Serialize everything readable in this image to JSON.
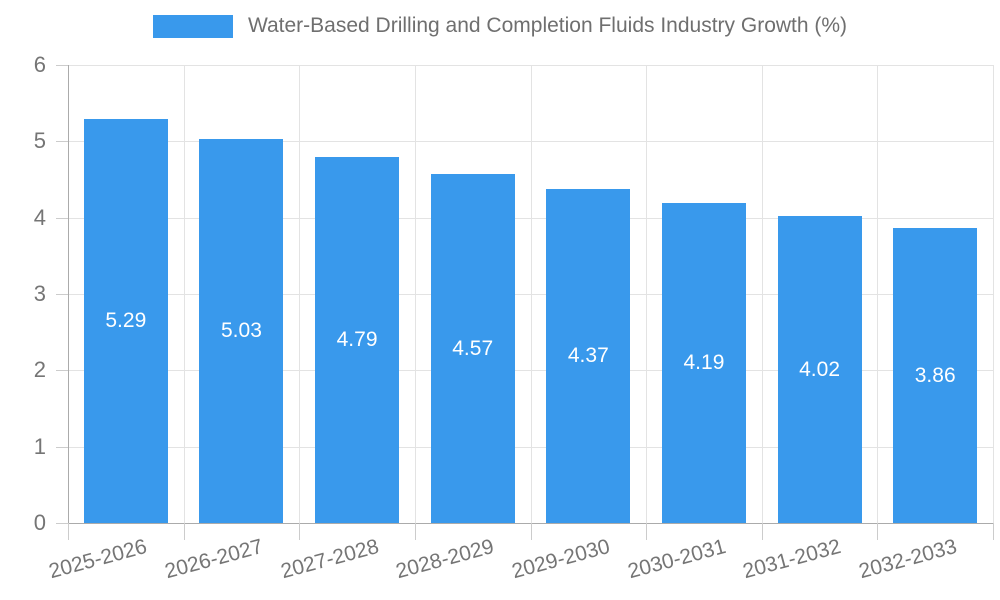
{
  "chart_data": {
    "type": "bar",
    "title": "Water-Based Drilling and Completion Fluids Industry Growth (%)",
    "categories": [
      "2025-2026",
      "2026-2027",
      "2027-2028",
      "2028-2029",
      "2029-2030",
      "2030-2031",
      "2031-2032",
      "2032-2033"
    ],
    "values": [
      5.29,
      5.03,
      4.79,
      4.57,
      4.37,
      4.19,
      4.02,
      3.86
    ],
    "value_labels": [
      "5.29",
      "5.03",
      "4.79",
      "4.57",
      "4.37",
      "4.19",
      "4.02",
      "3.86"
    ],
    "xlabel": "",
    "ylabel": "",
    "ylim": [
      0,
      6
    ],
    "yticks": [
      0,
      1,
      2,
      3,
      4,
      5,
      6
    ],
    "grid": true,
    "legend_position": "top",
    "colors": {
      "bar": "#3999ec",
      "value_label": "#ffffff",
      "gridline": "#e3e3e3",
      "axis_line": "#ababab",
      "tick_mark": "#cccccc",
      "tick_label": "#757575",
      "title": "#6f6f6f"
    }
  }
}
